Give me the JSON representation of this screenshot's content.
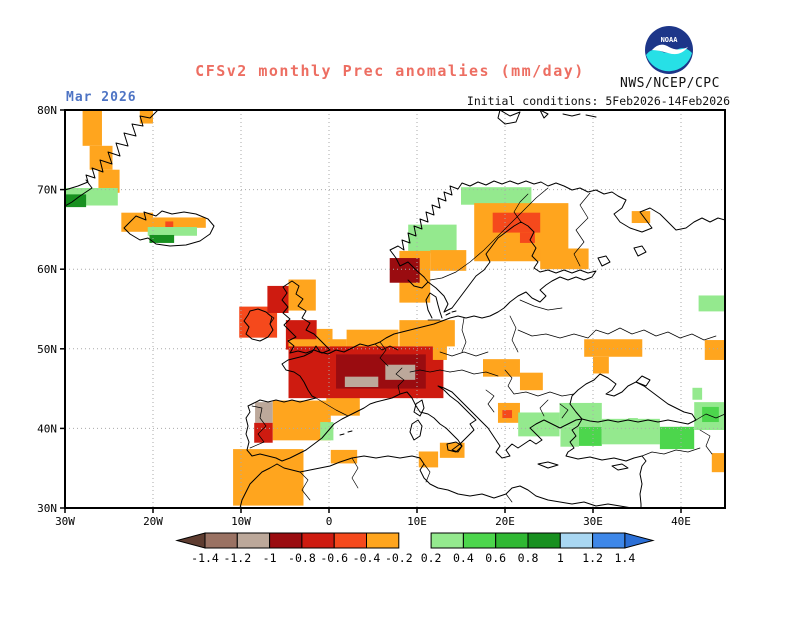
{
  "header": {
    "title": "CFSv2 monthly Prec anomalies (mm/day)",
    "title_color": "#ED6E62",
    "month": "Mar 2026",
    "month_color": "#4E74C4",
    "initial_conditions": "Initial conditions: 5Feb2026-14Feb2026",
    "agency": "NWS/NCEP/CPC",
    "logo": {
      "name": "noaa-logo",
      "text": "NOAA",
      "navy": "#1D3689",
      "cyan": "#27E0E6"
    }
  },
  "chart_data": {
    "type": "heatmap",
    "title": "CFSv2 monthly Prec anomalies (mm/day)",
    "units": "mm/day",
    "region": "Europe / North Atlantic",
    "lon_range": [
      -30,
      45
    ],
    "lat_range": [
      30,
      80
    ],
    "x_ticks": [
      "30W",
      "20W",
      "10W",
      "0",
      "10E",
      "20E",
      "30E",
      "40E"
    ],
    "x_tick_lons": [
      -30,
      -20,
      -10,
      0,
      10,
      20,
      30,
      40
    ],
    "y_ticks": [
      "80N",
      "70N",
      "60N",
      "50N",
      "40N",
      "30N"
    ],
    "y_tick_lats": [
      80,
      70,
      60,
      50,
      40,
      30
    ],
    "grid": "dotted 10-degree graticule",
    "palette": {
      "lt-1.4": "#5E3C30",
      "-1.4to-1.2": "#9A7263",
      "-1.2to-1": "#BCA89A",
      "-1to-0.8": "#9A0C10",
      "-0.8to-0.6": "#CE1B10",
      "-0.6to-0.4": "#F5491C",
      "-0.4to-0.2": "#FFA51E",
      "0.2to0.4": "#94E98E",
      "0.4to0.6": "#4CD64C",
      "0.6to0.8": "#30B833",
      "0.8to1": "#189020",
      "1to1.2": "#A9D7F2",
      "1.2to1.4": "#3E87E8",
      "gt1.4": "#2B6FD6"
    },
    "legend": {
      "position": "bottom",
      "tick_labels": [
        "-1.4",
        "-1.2",
        "-1",
        "-0.8",
        "-0.6",
        "-0.4",
        "-0.2",
        "0.2",
        "0.4",
        "0.6",
        "0.8",
        "1",
        "1.2",
        "1.4"
      ],
      "box_levels_left": [
        "-1.4to-1.2",
        "-1.2to-1",
        "-1to-0.8",
        "-0.8to-0.6",
        "-0.6to-0.4",
        "-0.4to-0.2"
      ],
      "box_levels_right": [
        "0.2to0.4",
        "0.4to0.6",
        "0.6to0.8",
        "0.8to1",
        "1to1.2",
        "1.2to1.4"
      ],
      "arrow_left_level": "lt-1.4",
      "arrow_right_level": "gt1.4"
    },
    "anomaly_cells": [
      {
        "lon": [
          -28,
          -25.8
        ],
        "lat": [
          75.5,
          80
        ],
        "level": "-0.4to-0.2"
      },
      {
        "lon": [
          -27.2,
          -24.6
        ],
        "lat": [
          72.5,
          75.5
        ],
        "level": "-0.4to-0.2"
      },
      {
        "lon": [
          -26.2,
          -23.8
        ],
        "lat": [
          69.6,
          72.5
        ],
        "level": "-0.4to-0.2"
      },
      {
        "lon": [
          -21.5,
          -20
        ],
        "lat": [
          78.3,
          80
        ],
        "level": "-0.4to-0.2"
      },
      {
        "lon": [
          -30,
          -24
        ],
        "lat": [
          68,
          70.2
        ],
        "level": "0.2to0.4"
      },
      {
        "lon": [
          -30,
          -27.6
        ],
        "lat": [
          67.8,
          69.4
        ],
        "level": "0.8to1"
      },
      {
        "lon": [
          -23.6,
          -20
        ],
        "lat": [
          64.7,
          67.1
        ],
        "level": "-0.4to-0.2"
      },
      {
        "lon": [
          -20,
          -14
        ],
        "lat": [
          65.2,
          66.5
        ],
        "level": "-0.4to-0.2"
      },
      {
        "lon": [
          -18.6,
          -17.7
        ],
        "lat": [
          65.2,
          66
        ],
        "level": "-0.6to-0.4"
      },
      {
        "lon": [
          -20.6,
          -15
        ],
        "lat": [
          64.2,
          65.3
        ],
        "level": "0.2to0.4"
      },
      {
        "lon": [
          -20.4,
          -17.6
        ],
        "lat": [
          63.3,
          64.3
        ],
        "level": "0.8to1"
      },
      {
        "lon": [
          15,
          23
        ],
        "lat": [
          68.1,
          70.3
        ],
        "level": "0.2to0.4"
      },
      {
        "lon": [
          9,
          14.5
        ],
        "lat": [
          62,
          65.6
        ],
        "level": "0.2to0.4"
      },
      {
        "lon": [
          16.5,
          27.2
        ],
        "lat": [
          61,
          68.3
        ],
        "level": "-0.4to-0.2"
      },
      {
        "lon": [
          18.6,
          24
        ],
        "lat": [
          64.6,
          67.1
        ],
        "level": "-0.6to-0.4"
      },
      {
        "lon": [
          21.7,
          23.4
        ],
        "lat": [
          63.3,
          64.6
        ],
        "level": "-0.6to-0.4"
      },
      {
        "lon": [
          24,
          29.5
        ],
        "lat": [
          60,
          62.6
        ],
        "level": "-0.4to-0.2"
      },
      {
        "lon": [
          34.4,
          36.5
        ],
        "lat": [
          65.8,
          67.3
        ],
        "level": "-0.4to-0.2"
      },
      {
        "lon": [
          8,
          11.5
        ],
        "lat": [
          55.8,
          62.3
        ],
        "level": "-0.4to-0.2"
      },
      {
        "lon": [
          11.5,
          15.6
        ],
        "lat": [
          59.8,
          62.4
        ],
        "level": "-0.4to-0.2"
      },
      {
        "lon": [
          6.9,
          10.3
        ],
        "lat": [
          58.3,
          61.4
        ],
        "level": "-1to-0.8"
      },
      {
        "lon": [
          -10.2,
          -5.9
        ],
        "lat": [
          51.4,
          55.3
        ],
        "level": "-0.6to-0.4"
      },
      {
        "lon": [
          -7,
          -4.6
        ],
        "lat": [
          54.5,
          57.9
        ],
        "level": "-0.8to-0.6"
      },
      {
        "lon": [
          -4.6,
          -1.5
        ],
        "lat": [
          54.8,
          58.7
        ],
        "level": "-0.4to-0.2"
      },
      {
        "lon": [
          -4.9,
          -1.4
        ],
        "lat": [
          49.9,
          53.6
        ],
        "level": "-0.8to-0.6"
      },
      {
        "lon": [
          -1.4,
          0.4
        ],
        "lat": [
          50.1,
          52.5
        ],
        "level": "-0.4to-0.2"
      },
      {
        "lon": [
          -4.6,
          2
        ],
        "lat": [
          49.6,
          51.2
        ],
        "level": "-0.4to-0.2"
      },
      {
        "lon": [
          2,
          7.9
        ],
        "lat": [
          49.9,
          52.4
        ],
        "level": "-0.4to-0.2"
      },
      {
        "lon": [
          8,
          14.3
        ],
        "lat": [
          50.3,
          53.6
        ],
        "level": "-0.4to-0.2"
      },
      {
        "lon": [
          -0.3,
          3.5
        ],
        "lat": [
          41.6,
          43.9
        ],
        "level": "-0.4to-0.2"
      },
      {
        "lon": [
          -4.6,
          13
        ],
        "lat": [
          43.8,
          50.3
        ],
        "level": "-0.8to-0.6"
      },
      {
        "lon": [
          0.8,
          11
        ],
        "lat": [
          45,
          49.3
        ],
        "level": "-1to-0.8"
      },
      {
        "lon": [
          1.8,
          5.6
        ],
        "lat": [
          45.2,
          46.5
        ],
        "level": "-1.2to-1"
      },
      {
        "lon": [
          6.4,
          9.8
        ],
        "lat": [
          46.1,
          48
        ],
        "level": "-1.2to-1"
      },
      {
        "lon": [
          11.8,
          13.4
        ],
        "lat": [
          48.6,
          50.7
        ],
        "level": "-0.4to-0.2"
      },
      {
        "lon": [
          -6.4,
          0.2
        ],
        "lat": [
          38.5,
          43.5
        ],
        "level": "-0.4to-0.2"
      },
      {
        "lon": [
          -8.4,
          -6.4
        ],
        "lat": [
          40.7,
          43.3
        ],
        "level": "-1.2to-1"
      },
      {
        "lon": [
          -8.5,
          -6.4
        ],
        "lat": [
          38.2,
          40.7
        ],
        "level": "-0.8to-0.6"
      },
      {
        "lon": [
          -1,
          0.5
        ],
        "lat": [
          38.5,
          40.8
        ],
        "level": "0.2to0.4"
      },
      {
        "lon": [
          -10.9,
          -2.9
        ],
        "lat": [
          30.3,
          37.4
        ],
        "level": "-0.4to-0.2"
      },
      {
        "lon": [
          0.2,
          3.2
        ],
        "lat": [
          35.6,
          37.3
        ],
        "level": "-0.4to-0.2"
      },
      {
        "lon": [
          10.2,
          12.4
        ],
        "lat": [
          35.1,
          37.1
        ],
        "level": "-0.4to-0.2"
      },
      {
        "lon": [
          12.6,
          15.4
        ],
        "lat": [
          36.3,
          38.2
        ],
        "level": "-0.4to-0.2"
      },
      {
        "lon": [
          19.2,
          21.7
        ],
        "lat": [
          40.7,
          43.2
        ],
        "level": "-0.4to-0.2"
      },
      {
        "lon": [
          19.7,
          20.8
        ],
        "lat": [
          41.3,
          42.3
        ],
        "level": "-0.6to-0.4"
      },
      {
        "lon": [
          17.5,
          21.7
        ],
        "lat": [
          46.5,
          48.7
        ],
        "level": "-0.4to-0.2"
      },
      {
        "lon": [
          21.7,
          24.3
        ],
        "lat": [
          44.8,
          47
        ],
        "level": "-0.4to-0.2"
      },
      {
        "lon": [
          29,
          35.6
        ],
        "lat": [
          49,
          51.2
        ],
        "level": "-0.4to-0.2"
      },
      {
        "lon": [
          30,
          31.8
        ],
        "lat": [
          46.9,
          49
        ],
        "level": "-0.4to-0.2"
      },
      {
        "lon": [
          42.7,
          45
        ],
        "lat": [
          48.6,
          51.1
        ],
        "level": "-0.4to-0.2"
      },
      {
        "lon": [
          42,
          45
        ],
        "lat": [
          54.7,
          56.7
        ],
        "level": "0.2to0.4"
      },
      {
        "lon": [
          21.5,
          26.2
        ],
        "lat": [
          39,
          42
        ],
        "level": "0.2to0.4"
      },
      {
        "lon": [
          26.2,
          31
        ],
        "lat": [
          40.2,
          43.2
        ],
        "level": "0.2to0.4"
      },
      {
        "lon": [
          26.3,
          28.4
        ],
        "lat": [
          37.7,
          40.2
        ],
        "level": "0.2to0.4"
      },
      {
        "lon": [
          28.4,
          31
        ],
        "lat": [
          37.8,
          40.2
        ],
        "level": "0.4to0.6"
      },
      {
        "lon": [
          31,
          37.6
        ],
        "lat": [
          38,
          41.2
        ],
        "level": "0.2to0.4"
      },
      {
        "lon": [
          37.6,
          41.5
        ],
        "lat": [
          37.4,
          40.2
        ],
        "level": "0.4to0.6"
      },
      {
        "lon": [
          41.5,
          45
        ],
        "lat": [
          39.8,
          43.3
        ],
        "level": "0.2to0.4"
      },
      {
        "lon": [
          42.4,
          44.3
        ],
        "lat": [
          40.8,
          42.7
        ],
        "level": "0.4to0.6"
      },
      {
        "lon": [
          41.3,
          42.4
        ],
        "lat": [
          43.6,
          45.1
        ],
        "level": "0.2to0.4"
      },
      {
        "lon": [
          34,
          35.1
        ],
        "lat": [
          40.3,
          41.3
        ],
        "level": "0.2to0.4"
      },
      {
        "lon": [
          43.5,
          45
        ],
        "lat": [
          34.5,
          36.9
        ],
        "level": "-0.4to-0.2"
      }
    ]
  }
}
